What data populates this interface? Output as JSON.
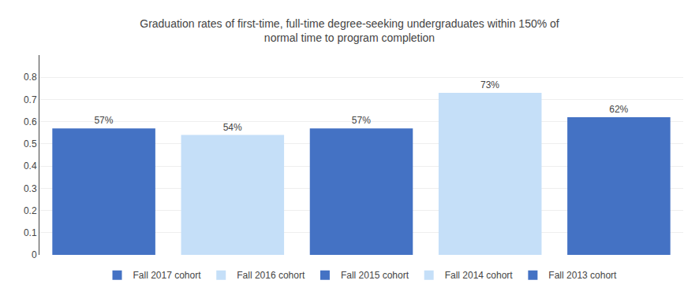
{
  "chart_data": {
    "type": "bar",
    "title": "Graduation rates of first-time, full-time degree-seeking undergraduates within 150% of\nnormal time to program completion",
    "categories": [
      "Fall 2017 cohort",
      "Fall 2016 cohort",
      "Fall 2015 cohort",
      "Fall 2014 cohort",
      "Fall 2013 cohort"
    ],
    "values": [
      0.57,
      0.54,
      0.57,
      0.73,
      0.62
    ],
    "value_labels": [
      "57%",
      "54%",
      "57%",
      "73%",
      "62%"
    ],
    "colors": [
      "#4472C4",
      "#C5DFF8",
      "#4472C4",
      "#C5DFF8",
      "#4472C4"
    ],
    "ylim": [
      0,
      0.9
    ],
    "yticks": [
      0,
      0.1,
      0.2,
      0.3,
      0.4,
      0.5,
      0.6,
      0.7,
      0.8
    ],
    "grid": true,
    "legend": "bottom",
    "data_labels": true,
    "tick_labels": "y"
  }
}
